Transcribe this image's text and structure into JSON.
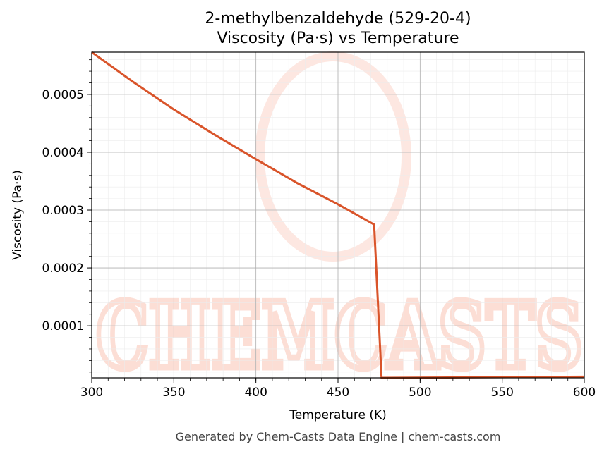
{
  "page": {
    "footer": "Generated by Chem-Casts Data Engine | chem-casts.com",
    "watermark": "CHEMCASTS"
  },
  "chart_data": {
    "type": "line",
    "title": "2-methylbenzaldehyde (529-20-4)",
    "subtitle": "Viscosity (Pa·s) vs Temperature",
    "xlabel": "Temperature (K)",
    "ylabel": "Viscosity (Pa·s)",
    "xlim": [
      300,
      600
    ],
    "ylim": [
      1e-05,
      0.000573
    ],
    "xticks": [
      300,
      350,
      400,
      450,
      500,
      550,
      600
    ],
    "xtick_labels": [
      "300",
      "350",
      "400",
      "450",
      "500",
      "550",
      "600"
    ],
    "yticks": [
      0.0001,
      0.0002,
      0.0003,
      0.0004,
      0.0005
    ],
    "ytick_labels": [
      "0.0001",
      "0.0002",
      "0.0003",
      "0.0004",
      "0.0005"
    ],
    "grid": true,
    "minor_grid": true,
    "legend": "none",
    "line_color": "#d9542a",
    "series": [
      {
        "x": [
          300,
          325,
          350,
          375,
          400,
          425,
          450,
          472,
          476.5,
          600
        ],
        "y": [
          0.000573,
          0.000522,
          0.000474,
          0.00043,
          0.000388,
          0.000347,
          0.00031,
          0.000275,
          1e-05,
          1.2e-05
        ]
      }
    ]
  }
}
